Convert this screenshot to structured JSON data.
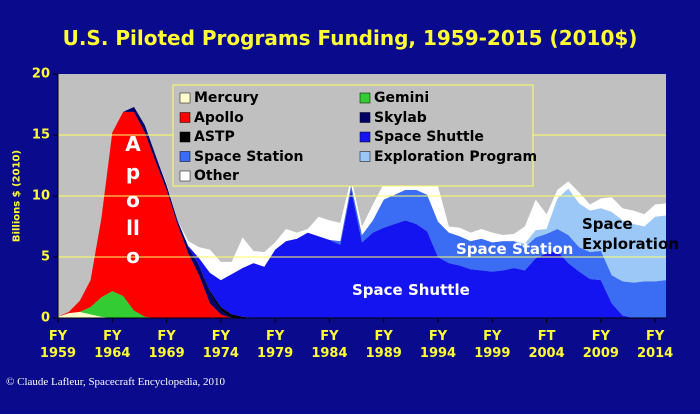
{
  "chart_data": {
    "type": "stacked-area",
    "title": "U.S. Piloted Programs Funding, 1959-2015 (2010$)",
    "y_label": "Billions $ (2010)",
    "credit": "© Claude Lafleur, Spacecraft Encyclopedia, 2010",
    "annotations": [
      "Apollo",
      "Space Shuttle",
      "Space Station",
      "Space Exploration"
    ],
    "xlim": [
      1959,
      2015
    ],
    "ylim": [
      0,
      20
    ],
    "yticks": [
      0,
      5,
      10,
      15,
      20
    ],
    "grid": true,
    "xticks": [
      {
        "value": 1959,
        "label": "FY 1959"
      },
      {
        "value": 1964,
        "label": "FY 1964"
      },
      {
        "value": 1969,
        "label": "FY 1969"
      },
      {
        "value": 1974,
        "label": "FY 1974"
      },
      {
        "value": 1979,
        "label": "FY 1979"
      },
      {
        "value": 1984,
        "label": "FY 1984"
      },
      {
        "value": 1989,
        "label": "FY 1989"
      },
      {
        "value": 1994,
        "label": "FY 1994"
      },
      {
        "value": 1999,
        "label": "FY 1999"
      },
      {
        "value": 2004,
        "label": "FT 2004"
      },
      {
        "value": 2009,
        "label": "FY 2009"
      },
      {
        "value": 2014,
        "label": "FY 2014"
      }
    ],
    "x": [
      1959,
      1960,
      1961,
      1962,
      1963,
      1964,
      1965,
      1966,
      1967,
      1968,
      1969,
      1970,
      1971,
      1972,
      1973,
      1974,
      1975,
      1976,
      1977,
      1978,
      1979,
      1980,
      1981,
      1982,
      1983,
      1984,
      1985,
      1986,
      1987,
      1988,
      1989,
      1990,
      1991,
      1992,
      1993,
      1994,
      1995,
      1996,
      1997,
      1998,
      1999,
      2000,
      2001,
      2002,
      2003,
      2004,
      2005,
      2006,
      2007,
      2008,
      2009,
      2010,
      2011,
      2012,
      2013,
      2014,
      2015
    ],
    "series": [
      {
        "name": "Mercury",
        "color": "#ffffcc",
        "values": [
          0.1,
          0.4,
          0.5,
          0.3,
          0.1,
          0,
          0,
          0,
          0,
          0,
          0,
          0,
          0,
          0,
          0,
          0,
          0,
          0,
          0,
          0,
          0,
          0,
          0,
          0,
          0,
          0,
          0,
          0,
          0,
          0,
          0,
          0,
          0,
          0,
          0,
          0,
          0,
          0,
          0,
          0,
          0,
          0,
          0,
          0,
          0,
          0,
          0,
          0,
          0,
          0,
          0,
          0,
          0,
          0,
          0,
          0,
          0
        ]
      },
      {
        "name": "Gemini",
        "color": "#33cc33",
        "values": [
          0,
          0,
          0,
          0.6,
          1.6,
          2.2,
          1.8,
          0.6,
          0.1,
          0,
          0,
          0,
          0,
          0,
          0,
          0,
          0,
          0,
          0,
          0,
          0,
          0,
          0,
          0,
          0,
          0,
          0,
          0,
          0,
          0,
          0,
          0,
          0,
          0,
          0,
          0,
          0,
          0,
          0,
          0,
          0,
          0,
          0,
          0,
          0,
          0,
          0,
          0,
          0,
          0,
          0,
          0,
          0,
          0,
          0,
          0,
          0
        ]
      },
      {
        "name": "Apollo",
        "color": "#ff0000",
        "values": [
          0,
          0.1,
          0.9,
          2.2,
          6.5,
          13.0,
          15.1,
          16.3,
          15.1,
          12.8,
          10.5,
          7.7,
          5.3,
          3.5,
          1.2,
          0.3,
          0,
          0,
          0,
          0,
          0,
          0,
          0,
          0,
          0,
          0,
          0,
          0,
          0,
          0,
          0,
          0,
          0,
          0,
          0,
          0,
          0,
          0,
          0,
          0,
          0,
          0,
          0,
          0,
          0,
          0,
          0,
          0,
          0,
          0,
          0,
          0,
          0,
          0,
          0,
          0,
          0
        ]
      },
      {
        "name": "Skylab",
        "color": "#000066",
        "values": [
          0,
          0,
          0,
          0,
          0,
          0,
          0,
          0.4,
          0.6,
          0.5,
          0.4,
          0.3,
          0.5,
          0.8,
          0.8,
          0.3,
          0,
          0,
          0,
          0,
          0,
          0,
          0,
          0,
          0,
          0,
          0,
          0,
          0,
          0,
          0,
          0,
          0,
          0,
          0,
          0,
          0,
          0,
          0,
          0,
          0,
          0,
          0,
          0,
          0,
          0,
          0,
          0,
          0,
          0,
          0,
          0,
          0,
          0,
          0,
          0,
          0
        ]
      },
      {
        "name": "ASTP",
        "color": "#000000",
        "values": [
          0,
          0,
          0,
          0,
          0,
          0,
          0,
          0,
          0,
          0,
          0,
          0,
          0,
          0,
          0.2,
          0.3,
          0.3,
          0.1,
          0,
          0,
          0,
          0,
          0,
          0,
          0,
          0,
          0,
          0,
          0,
          0,
          0,
          0,
          0,
          0,
          0,
          0,
          0,
          0,
          0,
          0,
          0,
          0,
          0,
          0,
          0,
          0,
          0,
          0,
          0,
          0,
          0,
          0,
          0,
          0,
          0,
          0,
          0
        ]
      },
      {
        "name": "Space Shuttle",
        "color": "#1414f0",
        "values": [
          0,
          0,
          0,
          0,
          0,
          0,
          0,
          0,
          0,
          0,
          0,
          0,
          0.1,
          0.6,
          1.5,
          2.2,
          3.3,
          4.0,
          4.5,
          4.2,
          5.6,
          6.3,
          6.5,
          7.0,
          6.7,
          6.4,
          6.0,
          10.5,
          6.2,
          7.0,
          7.4,
          7.7,
          8.0,
          7.7,
          7.1,
          5.0,
          4.5,
          4.3,
          4.0,
          3.9,
          3.8,
          3.9,
          4.1,
          3.9,
          4.9,
          5.3,
          5.5,
          4.5,
          3.8,
          3.2,
          3.1,
          1.2,
          0.2,
          0,
          0,
          0,
          0
        ]
      },
      {
        "name": "Space Station",
        "color": "#3a6cf4",
        "values": [
          0,
          0,
          0,
          0,
          0,
          0,
          0,
          0,
          0,
          0,
          0,
          0,
          0,
          0,
          0,
          0,
          0,
          0,
          0,
          0,
          0,
          0,
          0,
          0,
          0,
          0,
          0.3,
          0.4,
          0.6,
          1.0,
          2.3,
          2.4,
          2.5,
          2.8,
          3.0,
          2.9,
          2.5,
          2.4,
          2.3,
          2.6,
          2.4,
          2.4,
          2.2,
          1.9,
          1.7,
          1.6,
          1.8,
          2.3,
          2.0,
          2.2,
          2.4,
          2.3,
          2.8,
          2.9,
          3.0,
          3.0,
          3.1
        ]
      },
      {
        "name": "Exploration Program",
        "color": "#9cc8f8",
        "values": [
          0,
          0,
          0,
          0,
          0,
          0,
          0,
          0,
          0,
          0,
          0,
          0,
          0,
          0,
          0,
          0,
          0,
          0,
          0,
          0,
          0,
          0,
          0,
          0,
          0,
          0,
          0,
          0,
          0,
          0,
          0,
          0,
          0,
          0,
          0,
          0,
          0,
          0,
          0,
          0,
          0,
          0,
          0,
          0.3,
          0.6,
          0.4,
          2.5,
          3.8,
          3.6,
          3.4,
          3.5,
          5.2,
          5.0,
          4.8,
          4.5,
          5.3,
          5.3
        ]
      },
      {
        "name": "Other",
        "color": "#ffffff",
        "values": [
          0,
          0,
          0,
          0,
          0,
          0,
          0,
          0,
          0,
          0,
          0.1,
          0,
          0.4,
          0.9,
          1.9,
          1.5,
          1.0,
          2.5,
          1.0,
          1.2,
          0.6,
          1.0,
          0.5,
          0.3,
          1.6,
          1.6,
          1.5,
          0.6,
          0.7,
          1.3,
          1.3,
          1.2,
          1.1,
          1.1,
          0.9,
          2.9,
          0.5,
          0.7,
          0.7,
          0.8,
          0.8,
          0.5,
          0.6,
          1.4,
          2.5,
          1.2,
          0.7,
          0.6,
          0.9,
          0.5,
          0.8,
          1.2,
          1.0,
          1.1,
          1.0,
          1.0,
          1.0
        ]
      }
    ]
  }
}
